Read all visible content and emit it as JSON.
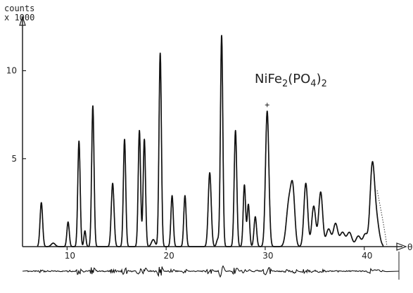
{
  "chart_data": {
    "type": "line",
    "title": "",
    "annotation": "NiFe2(PO4)2",
    "ylabel_line1": "counts",
    "ylabel_line2": "x 1000",
    "xlabel": "θ",
    "xlim": [
      5.5,
      43.5
    ],
    "ylim": [
      0,
      12.5
    ],
    "x_ticks": [
      {
        "value": 10,
        "label": "10"
      },
      {
        "value": 20,
        "label": "20"
      },
      {
        "value": 30,
        "label": "30"
      },
      {
        "value": 40,
        "label": "40"
      }
    ],
    "y_ticks": [
      {
        "value": 5,
        "label": "5"
      },
      {
        "value": 10,
        "label": "10"
      }
    ],
    "series": [
      {
        "peaks": [
          {
            "x": 7.4,
            "h": 2.5,
            "w": 0.13
          },
          {
            "x": 8.6,
            "h": 0.2,
            "w": 0.2
          },
          {
            "x": 10.1,
            "h": 1.4,
            "w": 0.12
          },
          {
            "x": 11.2,
            "h": 6.0,
            "w": 0.12
          },
          {
            "x": 11.8,
            "h": 0.9,
            "w": 0.1
          },
          {
            "x": 12.6,
            "h": 8.0,
            "w": 0.12
          },
          {
            "x": 14.6,
            "h": 3.6,
            "w": 0.14
          },
          {
            "x": 15.8,
            "h": 6.1,
            "w": 0.12
          },
          {
            "x": 17.3,
            "h": 6.6,
            "w": 0.12
          },
          {
            "x": 17.8,
            "h": 6.1,
            "w": 0.12
          },
          {
            "x": 18.7,
            "h": 0.4,
            "w": 0.18
          },
          {
            "x": 19.4,
            "h": 11.0,
            "w": 0.12
          },
          {
            "x": 20.6,
            "h": 2.9,
            "w": 0.12
          },
          {
            "x": 21.9,
            "h": 2.9,
            "w": 0.12
          },
          {
            "x": 24.4,
            "h": 4.2,
            "w": 0.15
          },
          {
            "x": 25.2,
            "h": 0.4,
            "w": 0.12
          },
          {
            "x": 25.6,
            "h": 12.0,
            "w": 0.12
          },
          {
            "x": 27.0,
            "h": 6.6,
            "w": 0.13
          },
          {
            "x": 27.9,
            "h": 3.5,
            "w": 0.12
          },
          {
            "x": 28.3,
            "h": 2.4,
            "w": 0.12
          },
          {
            "x": 29.0,
            "h": 1.7,
            "w": 0.13
          },
          {
            "x": 30.2,
            "h": 7.7,
            "w": 0.17
          },
          {
            "x": 32.4,
            "h": 2.5,
            "w": 0.26
          },
          {
            "x": 32.8,
            "h": 2.8,
            "w": 0.2
          },
          {
            "x": 34.1,
            "h": 3.6,
            "w": 0.19
          },
          {
            "x": 34.9,
            "h": 2.3,
            "w": 0.2
          },
          {
            "x": 35.6,
            "h": 3.1,
            "w": 0.2
          },
          {
            "x": 36.4,
            "h": 1.0,
            "w": 0.24
          },
          {
            "x": 37.1,
            "h": 1.3,
            "w": 0.22
          },
          {
            "x": 37.8,
            "h": 0.8,
            "w": 0.25
          },
          {
            "x": 38.5,
            "h": 0.8,
            "w": 0.25
          },
          {
            "x": 39.4,
            "h": 0.6,
            "w": 0.25
          },
          {
            "x": 40.1,
            "h": 0.7,
            "w": 0.22
          },
          {
            "x": 40.8,
            "h": 4.2,
            "w": 0.22
          },
          {
            "x": 41.2,
            "h": 1.6,
            "w": 0.28
          }
        ]
      }
    ],
    "difference_curve": true,
    "grid": false,
    "legend": "none"
  }
}
